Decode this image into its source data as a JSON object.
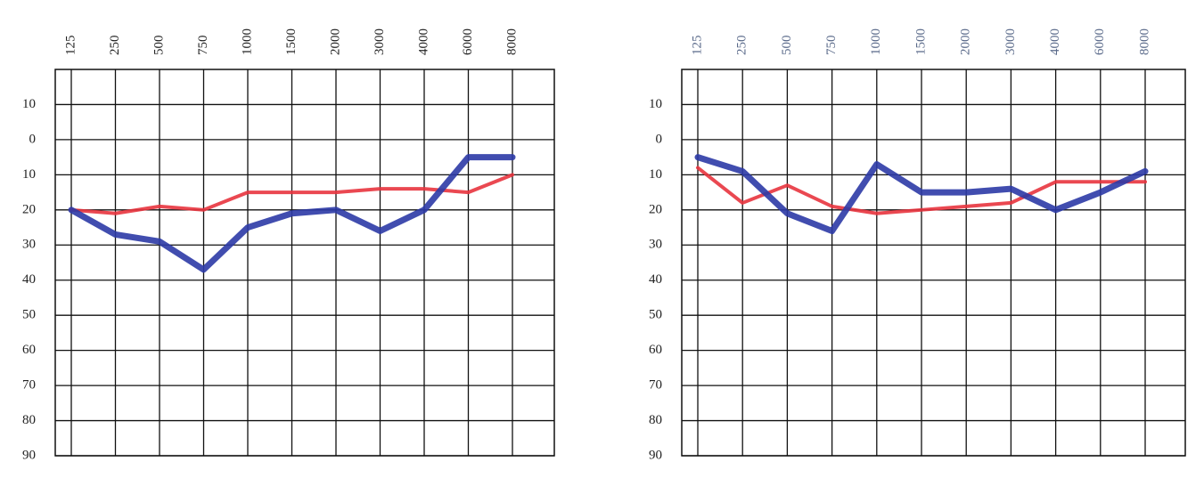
{
  "chart_data": [
    {
      "type": "line",
      "categories": [
        "125",
        "250",
        "500",
        "750",
        "1000",
        "1500",
        "2000",
        "3000",
        "4000",
        "6000",
        "8000"
      ],
      "series": [
        {
          "color": "#e8343e",
          "values": [
            20,
            21,
            19,
            20,
            15,
            15,
            15,
            14,
            14,
            15,
            10
          ]
        },
        {
          "color": "#2c3aa6",
          "values": [
            20,
            27,
            29,
            37,
            25,
            21,
            20,
            26,
            20,
            5,
            5
          ]
        }
      ],
      "ylim": [
        -20,
        90
      ],
      "y_inverted": true,
      "yticks": [
        {
          "value": -10,
          "label": "10"
        },
        0,
        10,
        20,
        30,
        40,
        50,
        60,
        70,
        80,
        90
      ],
      "grid": true,
      "tick_color": "#222222"
    },
    {
      "type": "line",
      "categories": [
        "125",
        "250",
        "500",
        "750",
        "1000",
        "1500",
        "2000",
        "3000",
        "4000",
        "6000",
        "8000"
      ],
      "series": [
        {
          "color": "#e8343e",
          "values": [
            8,
            18,
            13,
            19,
            21,
            20,
            19,
            18,
            12,
            12,
            12
          ]
        },
        {
          "color": "#2c3aa6",
          "values": [
            5,
            9,
            21,
            26,
            7,
            15,
            15,
            14,
            20,
            15,
            9
          ]
        }
      ],
      "ylim": [
        -20,
        90
      ],
      "y_inverted": true,
      "yticks": [
        {
          "value": -10,
          "label": "10"
        },
        0,
        10,
        20,
        30,
        40,
        50,
        60,
        70,
        80,
        90
      ],
      "grid": true,
      "tick_color": "#5a6a8a"
    }
  ]
}
